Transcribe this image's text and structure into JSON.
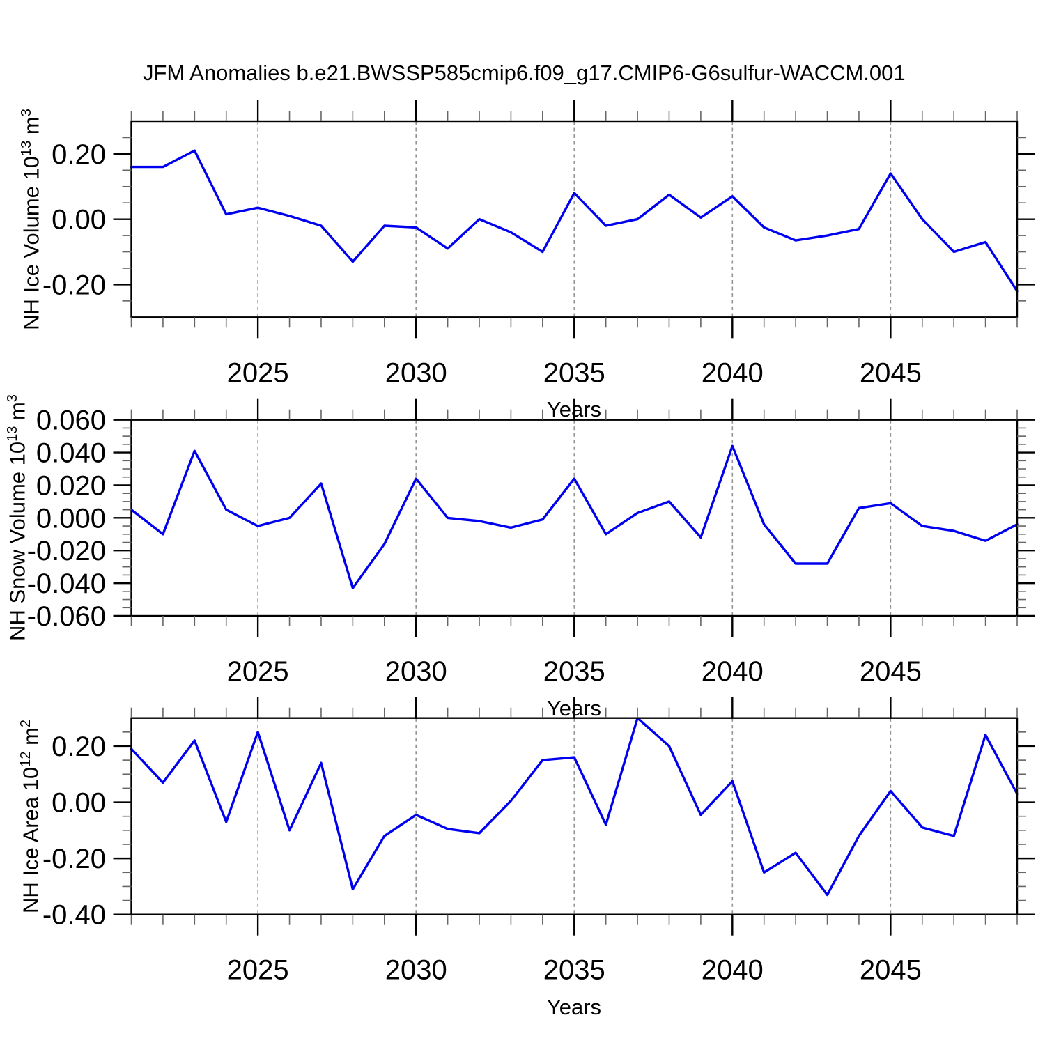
{
  "header": {
    "title": "JFM Anomalies b.e21.BWSSP585cmip6.f09_g17.CMIP6-G6sulfur-WACCM.001"
  },
  "colors": {
    "line": "#0000f0",
    "grid": "#949494",
    "axis": "#000000",
    "minor_tick": "#666666",
    "text": "#000000",
    "background": "#ffffff"
  },
  "chart_data": [
    {
      "type": "line",
      "xlabel": "Years",
      "ylabel": {
        "prefix": "NH Ice Volume 10",
        "exp": "13",
        "unit": " m",
        "unit_exp": "3"
      },
      "x": [
        2021,
        2022,
        2023,
        2024,
        2025,
        2026,
        2027,
        2028,
        2029,
        2030,
        2031,
        2032,
        2033,
        2034,
        2035,
        2036,
        2037,
        2038,
        2039,
        2040,
        2041,
        2042,
        2043,
        2044,
        2045,
        2046,
        2047,
        2048,
        2049
      ],
      "values": [
        0.16,
        0.16,
        0.21,
        0.015,
        0.035,
        0.01,
        -0.02,
        -0.13,
        -0.02,
        -0.025,
        -0.09,
        0.0,
        -0.04,
        -0.1,
        0.08,
        -0.02,
        0.0,
        0.075,
        0.005,
        0.07,
        -0.025,
        -0.065,
        -0.05,
        -0.03,
        0.14,
        0.0,
        -0.1,
        -0.07,
        -0.22
      ],
      "xlim": [
        2021,
        2049
      ],
      "ylim": [
        -0.3,
        0.3
      ],
      "xticks": {
        "values": [
          2025,
          2030,
          2035,
          2040,
          2045
        ],
        "labels": [
          "2025",
          "2030",
          "2035",
          "2040",
          "2045"
        ],
        "minor_step": 1
      },
      "yticks": {
        "values": [
          0.2,
          0.0,
          -0.2
        ],
        "labels": [
          "0.20",
          "0.00",
          "-0.20"
        ],
        "minor_step": 0.05
      },
      "grid": "dashed vertical at major x ticks",
      "legend": "none"
    },
    {
      "type": "line",
      "xlabel": "Years",
      "ylabel": {
        "prefix": "NH Snow Volume 10",
        "exp": "13",
        "unit": " m",
        "unit_exp": "3"
      },
      "x": [
        2021,
        2022,
        2023,
        2024,
        2025,
        2026,
        2027,
        2028,
        2029,
        2030,
        2031,
        2032,
        2033,
        2034,
        2035,
        2036,
        2037,
        2038,
        2039,
        2040,
        2041,
        2042,
        2043,
        2044,
        2045,
        2046,
        2047,
        2048,
        2049
      ],
      "values": [
        0.005,
        -0.01,
        0.041,
        0.005,
        -0.005,
        0.0,
        0.021,
        -0.043,
        -0.016,
        0.024,
        0.0,
        -0.002,
        -0.006,
        -0.001,
        0.024,
        -0.01,
        0.003,
        0.01,
        -0.012,
        0.044,
        -0.004,
        -0.028,
        -0.028,
        0.006,
        0.009,
        -0.005,
        -0.008,
        -0.014,
        -0.004
      ],
      "xlim": [
        2021,
        2049
      ],
      "ylim": [
        -0.06,
        0.06
      ],
      "xticks": {
        "values": [
          2025,
          2030,
          2035,
          2040,
          2045
        ],
        "labels": [
          "2025",
          "2030",
          "2035",
          "2040",
          "2045"
        ],
        "minor_step": 1
      },
      "yticks": {
        "values": [
          0.06,
          0.04,
          0.02,
          0.0,
          -0.02,
          -0.04,
          -0.06
        ],
        "labels": [
          "0.060",
          "0.040",
          "0.020",
          "0.000",
          "-0.020",
          "-0.040",
          "-0.060"
        ],
        "minor_step": 0.005
      },
      "grid": "dashed vertical at major x ticks",
      "legend": "none"
    },
    {
      "type": "line",
      "xlabel": "Years",
      "ylabel": {
        "prefix": "NH Ice Area 10",
        "exp": "12",
        "unit": " m",
        "unit_exp": "2"
      },
      "x": [
        2021,
        2022,
        2023,
        2024,
        2025,
        2026,
        2027,
        2028,
        2029,
        2030,
        2031,
        2032,
        2033,
        2034,
        2035,
        2036,
        2037,
        2038,
        2039,
        2040,
        2041,
        2042,
        2043,
        2044,
        2045,
        2046,
        2047,
        2048,
        2049
      ],
      "values": [
        0.19,
        0.07,
        0.22,
        -0.07,
        0.25,
        -0.1,
        0.14,
        -0.31,
        -0.12,
        -0.045,
        -0.095,
        -0.11,
        0.005,
        0.15,
        0.16,
        -0.08,
        0.3,
        0.2,
        -0.045,
        0.075,
        -0.25,
        -0.18,
        -0.33,
        -0.12,
        0.04,
        -0.09,
        -0.12,
        0.24,
        0.03
      ],
      "xlim": [
        2021,
        2049
      ],
      "ylim": [
        -0.4,
        0.3
      ],
      "xticks": {
        "values": [
          2025,
          2030,
          2035,
          2040,
          2045
        ],
        "labels": [
          "2025",
          "2030",
          "2035",
          "2040",
          "2045"
        ],
        "minor_step": 1
      },
      "yticks": {
        "values": [
          0.2,
          0.0,
          -0.2,
          -0.4
        ],
        "labels": [
          "0.20",
          "0.00",
          "-0.20",
          "-0.40"
        ],
        "minor_step": 0.05
      },
      "grid": "dashed vertical at major x ticks",
      "legend": "none"
    }
  ]
}
